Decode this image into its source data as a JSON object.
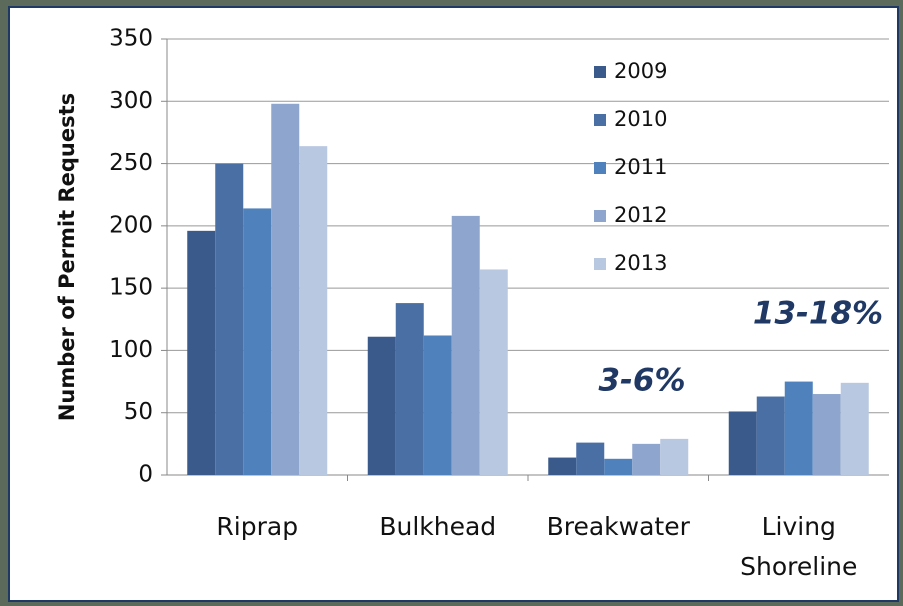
{
  "chart_data": {
    "type": "bar",
    "y_label": "Number of Permit Requests",
    "categories": [
      "Riprap",
      "Bulkhead",
      "Breakwater",
      "Living Shoreline"
    ],
    "series": [
      {
        "name": "2009",
        "color": "#3b5a8c",
        "values": [
          196,
          111,
          14,
          51
        ]
      },
      {
        "name": "2010",
        "color": "#4a6fa5",
        "values": [
          250,
          138,
          26,
          63
        ]
      },
      {
        "name": "2011",
        "color": "#4f81bd",
        "values": [
          214,
          112,
          13,
          75
        ]
      },
      {
        "name": "2012",
        "color": "#8ea6cd",
        "values": [
          298,
          208,
          25,
          65
        ]
      },
      {
        "name": "2013",
        "color": "#b9c8e1",
        "values": [
          264,
          165,
          29,
          74
        ]
      }
    ],
    "annotations": [
      "3-6%",
      "13-18%"
    ],
    "ylim": [
      0,
      350
    ],
    "yticks": [
      0,
      50,
      100,
      150,
      200,
      250,
      300,
      350
    ],
    "grid": true,
    "legend": "top-right"
  }
}
